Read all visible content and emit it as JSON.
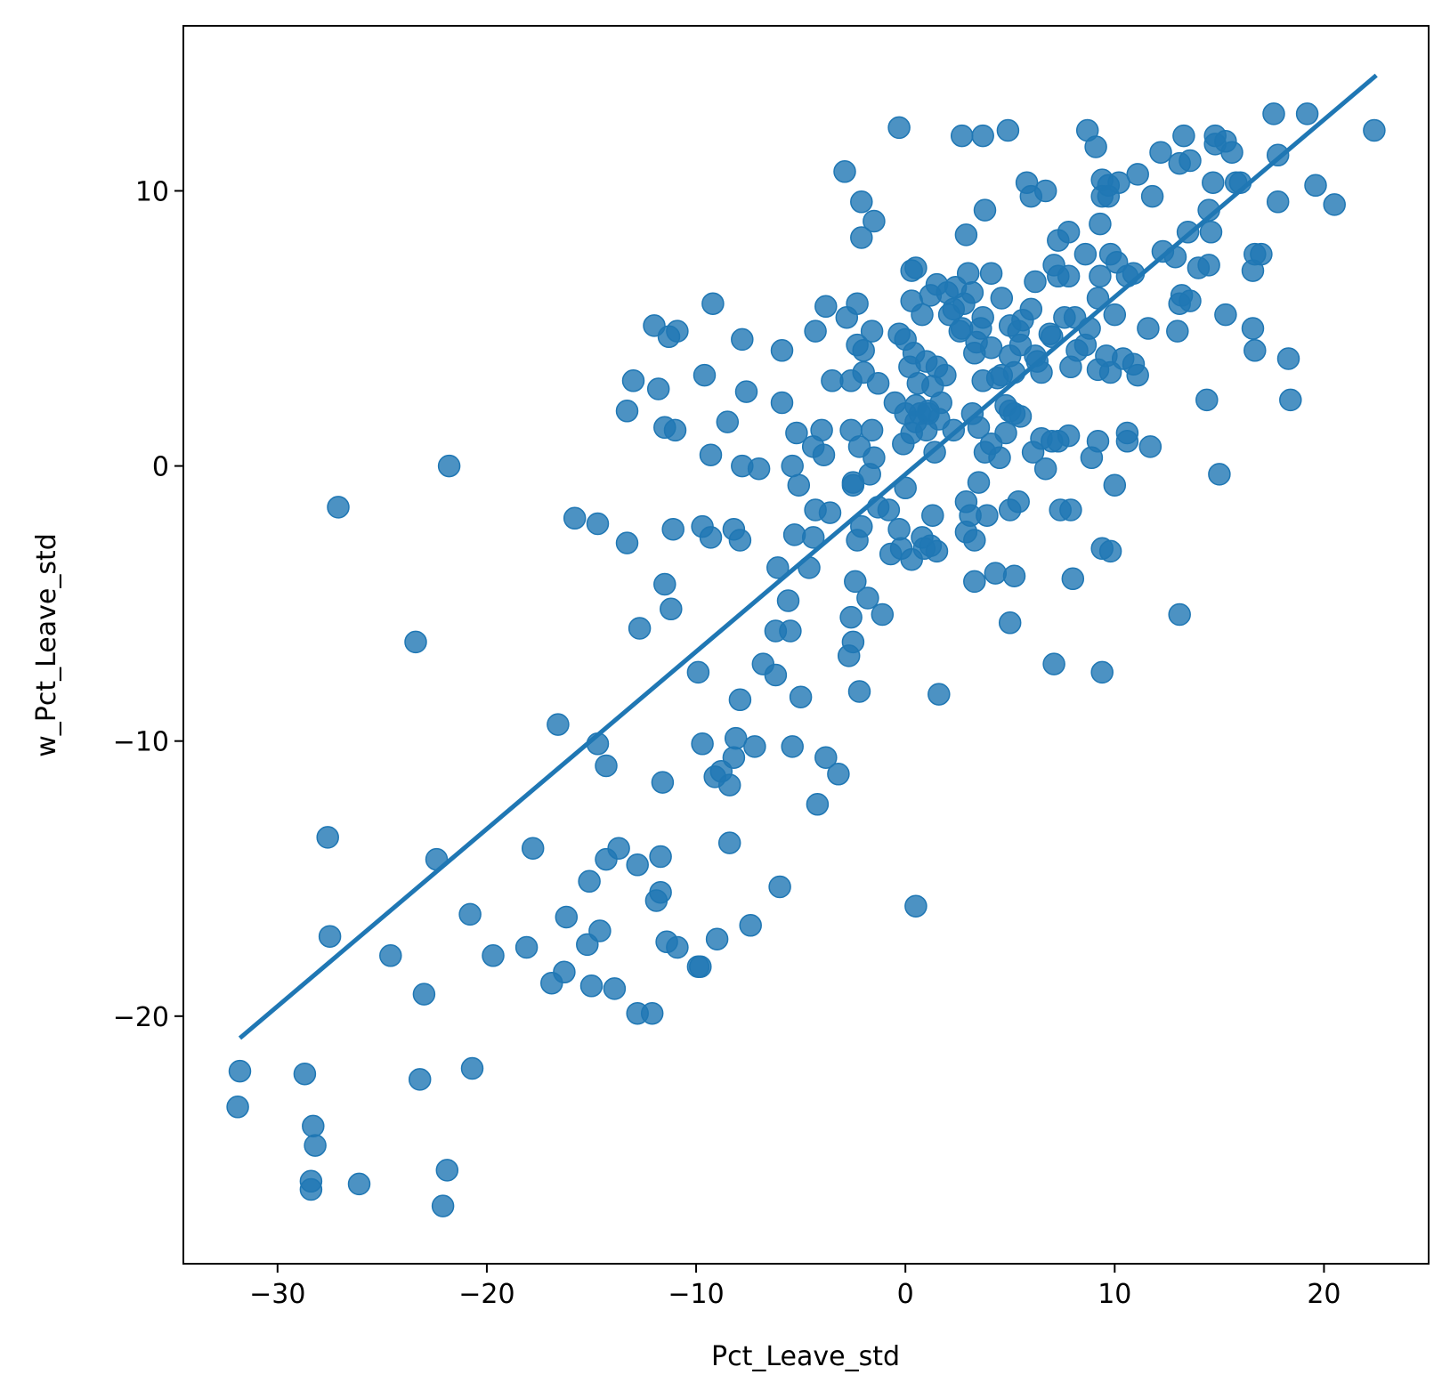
{
  "chart_data": {
    "type": "scatter",
    "xlabel": "Pct_Leave_std",
    "ylabel": "w_Pct_Leave_std",
    "xlim": [
      -34.5,
      25
    ],
    "ylim": [
      -29,
      16
    ],
    "xticks": [
      -30,
      -20,
      -10,
      0,
      10,
      20
    ],
    "xtick_labels": [
      "−30",
      "−20",
      "−10",
      "0",
      "10",
      "20"
    ],
    "yticks": [
      -20,
      -10,
      0,
      10
    ],
    "ytick_labels": [
      "−20",
      "−10",
      "0",
      "10"
    ],
    "grid": false,
    "colors": {
      "points": "#1f77b4",
      "line": "#1f77b4"
    },
    "fit_line": {
      "x": [
        -31.8,
        22.5
      ],
      "y": [
        -20.8,
        14.2
      ]
    },
    "points": [
      [
        -31.8,
        -22.0
      ],
      [
        -31.9,
        -23.3
      ],
      [
        -28.7,
        -22.1
      ],
      [
        -28.3,
        -24.0
      ],
      [
        -28.2,
        -24.7
      ],
      [
        -28.4,
        -26.0
      ],
      [
        -28.4,
        -26.3
      ],
      [
        -26.1,
        -26.1
      ],
      [
        -22.1,
        -26.9
      ],
      [
        -21.9,
        -25.6
      ],
      [
        -23.2,
        -22.3
      ],
      [
        -20.7,
        -21.9
      ],
      [
        -27.1,
        -1.5
      ],
      [
        -21.8,
        0.0
      ],
      [
        -23.4,
        -6.4
      ],
      [
        -27.6,
        -13.5
      ],
      [
        -27.5,
        -17.1
      ],
      [
        -22.4,
        -14.3
      ],
      [
        -24.6,
        -17.8
      ],
      [
        -23.0,
        -19.2
      ],
      [
        -20.8,
        -16.3
      ],
      [
        -19.7,
        -17.8
      ],
      [
        -18.1,
        -17.5
      ],
      [
        -17.8,
        -13.9
      ],
      [
        -16.9,
        -18.8
      ],
      [
        -16.3,
        -18.4
      ],
      [
        -16.2,
        -16.4
      ],
      [
        -15.2,
        -17.4
      ],
      [
        -15.0,
        -18.9
      ],
      [
        -15.1,
        -15.1
      ],
      [
        -14.6,
        -16.9
      ],
      [
        -14.3,
        -14.3
      ],
      [
        -13.7,
        -13.9
      ],
      [
        -13.9,
        -19.0
      ],
      [
        -12.8,
        -14.5
      ],
      [
        -12.8,
        -19.9
      ],
      [
        -12.1,
        -19.9
      ],
      [
        -11.9,
        -15.8
      ],
      [
        -11.7,
        -15.5
      ],
      [
        -11.7,
        -14.2
      ],
      [
        -11.4,
        -17.3
      ],
      [
        -10.9,
        -17.5
      ],
      [
        -9.9,
        -18.2
      ],
      [
        -9.8,
        -18.2
      ],
      [
        -9.0,
        -17.2
      ],
      [
        -7.4,
        -16.7
      ],
      [
        -6.0,
        -15.3
      ],
      [
        -8.4,
        -13.7
      ],
      [
        -16.6,
        -9.4
      ],
      [
        -14.7,
        -10.1
      ],
      [
        -14.3,
        -10.9
      ],
      [
        -11.6,
        -11.5
      ],
      [
        -9.7,
        -10.1
      ],
      [
        -9.1,
        -11.3
      ],
      [
        -8.8,
        -11.1
      ],
      [
        -8.4,
        -11.6
      ],
      [
        -8.2,
        -10.6
      ],
      [
        -8.1,
        -9.9
      ],
      [
        -7.2,
        -10.2
      ],
      [
        -5.4,
        -10.2
      ],
      [
        -3.8,
        -10.6
      ],
      [
        -3.2,
        -11.2
      ],
      [
        -4.2,
        -12.3
      ],
      [
        -7.9,
        -8.5
      ],
      [
        -9.9,
        -7.5
      ],
      [
        -6.8,
        -7.2
      ],
      [
        -6.2,
        -7.6
      ],
      [
        -5.0,
        -8.4
      ],
      [
        -2.2,
        -8.2
      ],
      [
        1.6,
        -8.3
      ],
      [
        -12.7,
        -5.9
      ],
      [
        -11.5,
        -4.3
      ],
      [
        -11.2,
        -5.2
      ],
      [
        -6.2,
        -6.0
      ],
      [
        -5.5,
        -6.0
      ],
      [
        -5.6,
        -4.9
      ],
      [
        -2.7,
        -6.9
      ],
      [
        -2.5,
        -6.4
      ],
      [
        -2.6,
        -5.5
      ],
      [
        -2.4,
        -4.2
      ],
      [
        -1.8,
        -4.8
      ],
      [
        -1.1,
        -5.4
      ],
      [
        -15.8,
        -1.9
      ],
      [
        -14.7,
        -2.1
      ],
      [
        -13.3,
        -2.8
      ],
      [
        -11.1,
        -2.3
      ],
      [
        -9.7,
        -2.2
      ],
      [
        -9.3,
        -2.6
      ],
      [
        -8.2,
        -2.3
      ],
      [
        -7.9,
        -2.7
      ],
      [
        -6.1,
        -3.7
      ],
      [
        -4.6,
        -3.7
      ],
      [
        -5.3,
        -2.5
      ],
      [
        -4.4,
        -2.6
      ],
      [
        -4.3,
        -1.6
      ],
      [
        -3.6,
        -1.7
      ],
      [
        -2.3,
        -2.7
      ],
      [
        -2.1,
        -2.2
      ],
      [
        -1.3,
        -1.5
      ],
      [
        -0.8,
        -1.6
      ],
      [
        -0.3,
        -2.3
      ],
      [
        -0.7,
        -3.2
      ],
      [
        -0.2,
        -3.0
      ],
      [
        0.3,
        -3.4
      ],
      [
        0.9,
        -3.0
      ],
      [
        1.2,
        -2.9
      ],
      [
        1.5,
        -3.1
      ],
      [
        0.8,
        -2.6
      ],
      [
        1.3,
        -1.8
      ],
      [
        -5.1,
        -0.7
      ],
      [
        -2.5,
        -0.7
      ],
      [
        -2.5,
        -0.6
      ],
      [
        -1.7,
        -0.3
      ],
      [
        0.0,
        -0.8
      ],
      [
        -9.3,
        0.4
      ],
      [
        -7.8,
        0.0
      ],
      [
        -7.0,
        -0.1
      ],
      [
        -5.4,
        0.0
      ],
      [
        -13.3,
        2.0
      ],
      [
        -13.0,
        3.1
      ],
      [
        -11.8,
        2.8
      ],
      [
        -11.5,
        1.4
      ],
      [
        -11.0,
        1.3
      ],
      [
        -8.5,
        1.6
      ],
      [
        -7.6,
        2.7
      ],
      [
        -5.9,
        2.3
      ],
      [
        -5.2,
        1.2
      ],
      [
        -4.4,
        0.7
      ],
      [
        -3.9,
        0.4
      ],
      [
        -4.0,
        1.3
      ],
      [
        -2.6,
        1.3
      ],
      [
        -2.2,
        0.7
      ],
      [
        -1.6,
        1.3
      ],
      [
        -1.5,
        0.3
      ],
      [
        -12.0,
        5.1
      ],
      [
        -11.3,
        4.7
      ],
      [
        -10.9,
        4.9
      ],
      [
        -9.2,
        5.9
      ],
      [
        -9.6,
        3.3
      ],
      [
        -7.8,
        4.6
      ],
      [
        -5.9,
        4.2
      ],
      [
        -4.3,
        4.9
      ],
      [
        -3.8,
        5.8
      ],
      [
        -3.5,
        3.1
      ],
      [
        -2.6,
        3.1
      ],
      [
        -2.8,
        5.4
      ],
      [
        -2.3,
        5.9
      ],
      [
        -2.3,
        4.4
      ],
      [
        -2.0,
        4.2
      ],
      [
        -2.0,
        3.4
      ],
      [
        -1.6,
        4.9
      ],
      [
        -1.3,
        3.0
      ],
      [
        -0.3,
        4.8
      ],
      [
        0.0,
        4.6
      ],
      [
        0.2,
        3.6
      ],
      [
        -2.9,
        10.7
      ],
      [
        -2.1,
        9.6
      ],
      [
        -1.5,
        8.9
      ],
      [
        -2.1,
        8.3
      ],
      [
        -0.3,
        12.3
      ],
      [
        0.3,
        7.1
      ],
      [
        0.5,
        7.2
      ],
      [
        0.3,
        6.0
      ],
      [
        1.2,
        6.2
      ],
      [
        1.5,
        6.6
      ],
      [
        2.0,
        6.3
      ],
      [
        2.3,
        5.7
      ],
      [
        2.4,
        6.5
      ],
      [
        3.0,
        7.0
      ],
      [
        3.2,
        6.3
      ],
      [
        2.7,
        5.0
      ],
      [
        3.4,
        4.5
      ],
      [
        3.6,
        5.0
      ],
      [
        4.1,
        4.3
      ],
      [
        3.3,
        4.1
      ],
      [
        1.0,
        3.8
      ],
      [
        1.5,
        3.6
      ],
      [
        1.9,
        3.3
      ],
      [
        1.3,
        2.9
      ],
      [
        0.5,
        2.2
      ],
      [
        0.7,
        1.9
      ],
      [
        1.1,
        1.9
      ],
      [
        1.6,
        1.7
      ],
      [
        1.0,
        1.3
      ],
      [
        1.4,
        0.5
      ],
      [
        -0.1,
        0.8
      ],
      [
        0.3,
        1.2
      ],
      [
        2.3,
        1.3
      ],
      [
        3.2,
        1.9
      ],
      [
        3.5,
        1.4
      ],
      [
        3.8,
        0.5
      ],
      [
        4.1,
        0.8
      ],
      [
        4.5,
        0.3
      ],
      [
        4.8,
        1.2
      ],
      [
        5.0,
        2.0
      ],
      [
        3.7,
        3.1
      ],
      [
        4.6,
        3.3
      ],
      [
        5.0,
        4.0
      ],
      [
        5.4,
        4.9
      ],
      [
        5.5,
        4.4
      ],
      [
        5.6,
        5.3
      ],
      [
        6.0,
        5.7
      ],
      [
        5.0,
        5.1
      ],
      [
        4.6,
        6.1
      ],
      [
        5.2,
        3.4
      ],
      [
        6.5,
        3.4
      ],
      [
        6.2,
        4.0
      ],
      [
        7.0,
        4.7
      ],
      [
        7.6,
        5.4
      ],
      [
        7.3,
        6.9
      ],
      [
        7.8,
        6.9
      ],
      [
        7.9,
        3.6
      ],
      [
        8.2,
        4.2
      ],
      [
        8.6,
        4.4
      ],
      [
        8.8,
        5.0
      ],
      [
        9.2,
        3.5
      ],
      [
        9.6,
        4.0
      ],
      [
        9.8,
        3.4
      ],
      [
        10.4,
        3.9
      ],
      [
        10.9,
        3.7
      ],
      [
        11.1,
        3.3
      ],
      [
        6.1,
        0.5
      ],
      [
        6.5,
        1.0
      ],
      [
        7.0,
        0.9
      ],
      [
        7.3,
        0.9
      ],
      [
        7.8,
        1.1
      ],
      [
        6.7,
        -0.1
      ],
      [
        8.9,
        0.3
      ],
      [
        9.2,
        0.9
      ],
      [
        10.6,
        1.2
      ],
      [
        10.6,
        0.9
      ],
      [
        11.7,
        0.7
      ],
      [
        10.0,
        -0.7
      ],
      [
        7.4,
        -1.6
      ],
      [
        7.9,
        -1.6
      ],
      [
        5.4,
        -1.3
      ],
      [
        5.0,
        -1.6
      ],
      [
        3.9,
        -1.8
      ],
      [
        2.9,
        -1.3
      ],
      [
        3.1,
        -1.8
      ],
      [
        2.9,
        -2.4
      ],
      [
        3.3,
        -2.7
      ],
      [
        3.5,
        -0.6
      ],
      [
        3.3,
        -4.2
      ],
      [
        4.3,
        -3.9
      ],
      [
        5.2,
        -4.0
      ],
      [
        5.0,
        -5.7
      ],
      [
        8.0,
        -4.1
      ],
      [
        9.4,
        -3.0
      ],
      [
        9.8,
        -3.1
      ],
      [
        7.1,
        -7.2
      ],
      [
        9.4,
        -7.5
      ],
      [
        0.5,
        -16.0
      ],
      [
        2.7,
        12.0
      ],
      [
        3.7,
        12.0
      ],
      [
        4.9,
        12.2
      ],
      [
        2.9,
        8.4
      ],
      [
        3.8,
        9.3
      ],
      [
        4.1,
        7.0
      ],
      [
        5.8,
        10.3
      ],
      [
        6.0,
        9.8
      ],
      [
        6.7,
        10.0
      ],
      [
        6.2,
        6.7
      ],
      [
        7.1,
        7.3
      ],
      [
        7.3,
        8.2
      ],
      [
        7.8,
        8.5
      ],
      [
        8.7,
        12.2
      ],
      [
        9.1,
        11.6
      ],
      [
        9.4,
        10.4
      ],
      [
        9.7,
        10.2
      ],
      [
        9.4,
        9.8
      ],
      [
        9.7,
        9.8
      ],
      [
        9.3,
        8.8
      ],
      [
        8.6,
        7.7
      ],
      [
        9.8,
        7.7
      ],
      [
        10.1,
        7.4
      ],
      [
        9.3,
        6.9
      ],
      [
        9.2,
        6.1
      ],
      [
        10.0,
        5.5
      ],
      [
        10.6,
        6.9
      ],
      [
        10.9,
        7.0
      ],
      [
        11.1,
        10.6
      ],
      [
        11.8,
        9.8
      ],
      [
        12.2,
        11.4
      ],
      [
        12.3,
        7.8
      ],
      [
        12.9,
        7.6
      ],
      [
        13.1,
        11.0
      ],
      [
        13.3,
        12.0
      ],
      [
        13.6,
        11.1
      ],
      [
        13.5,
        8.5
      ],
      [
        14.0,
        7.2
      ],
      [
        14.5,
        9.3
      ],
      [
        14.6,
        8.5
      ],
      [
        14.5,
        7.3
      ],
      [
        13.0,
        4.9
      ],
      [
        13.1,
        5.9
      ],
      [
        13.2,
        6.2
      ],
      [
        13.6,
        6.0
      ],
      [
        14.7,
        10.3
      ],
      [
        14.8,
        11.7
      ],
      [
        14.8,
        12.0
      ],
      [
        15.3,
        11.8
      ],
      [
        15.6,
        11.4
      ],
      [
        15.8,
        10.3
      ],
      [
        16.0,
        10.3
      ],
      [
        15.3,
        5.5
      ],
      [
        16.6,
        5.0
      ],
      [
        16.7,
        4.2
      ],
      [
        17.0,
        7.7
      ],
      [
        16.6,
        7.1
      ],
      [
        16.7,
        7.7
      ],
      [
        17.6,
        12.8
      ],
      [
        17.8,
        11.3
      ],
      [
        17.8,
        9.6
      ],
      [
        18.3,
        3.9
      ],
      [
        18.4,
        2.4
      ],
      [
        19.2,
        12.8
      ],
      [
        19.6,
        10.2
      ],
      [
        20.5,
        9.5
      ],
      [
        22.4,
        12.2
      ],
      [
        14.4,
        2.4
      ],
      [
        15.0,
        -0.3
      ],
      [
        13.1,
        -5.4
      ],
      [
        11.6,
        5.0
      ],
      [
        10.2,
        10.3
      ],
      [
        0.5,
        1.6
      ],
      [
        1.1,
        2.0
      ],
      [
        2.1,
        5.5
      ],
      [
        2.6,
        4.9
      ],
      [
        3.7,
        5.4
      ],
      [
        4.4,
        3.2
      ],
      [
        4.8,
        2.2
      ],
      [
        5.2,
        1.9
      ],
      [
        5.5,
        1.8
      ],
      [
        6.3,
        3.8
      ],
      [
        6.9,
        4.8
      ],
      [
        8.1,
        5.4
      ],
      [
        0.6,
        3.0
      ],
      [
        -0.5,
        2.3
      ],
      [
        0.0,
        1.9
      ],
      [
        1.7,
        2.3
      ],
      [
        2.8,
        5.9
      ],
      [
        0.8,
        5.5
      ],
      [
        0.4,
        4.1
      ]
    ]
  }
}
